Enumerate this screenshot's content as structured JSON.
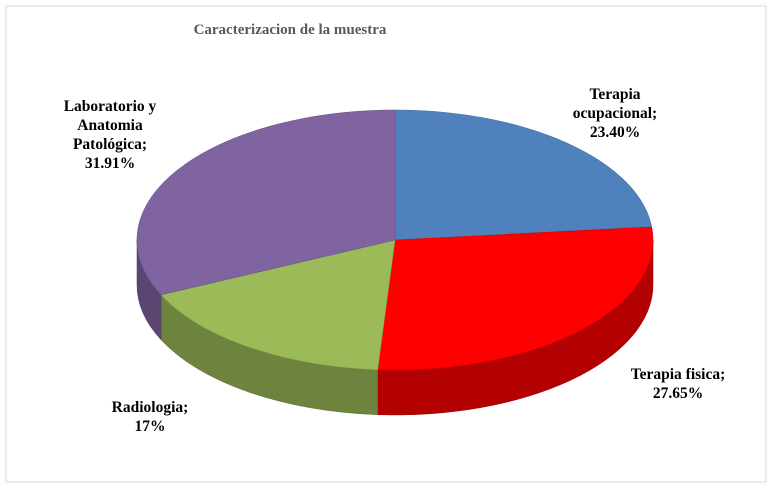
{
  "chart_data": {
    "type": "pie3d",
    "title": "Caracterizacion de la muestra",
    "categories": [
      "Terapia ocupacional",
      "Terapia fisica",
      "Radiologia",
      "Laboratorio y Anatomia Patológica"
    ],
    "values": [
      23.4,
      27.65,
      17,
      31.91
    ],
    "value_labels": [
      "23.40%",
      "27.65%",
      "17%",
      "31.91%"
    ],
    "separator": ";",
    "colors": [
      "#4f81bd",
      "#ff0000",
      "#9bbb59",
      "#8064a2"
    ]
  }
}
